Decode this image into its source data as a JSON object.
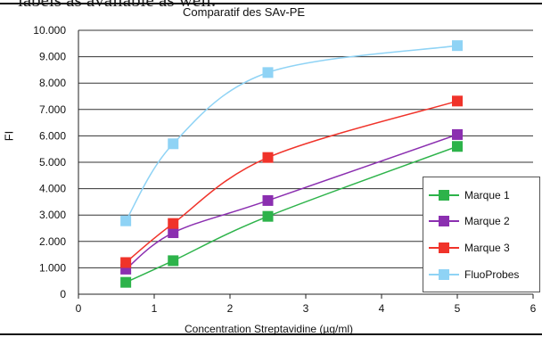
{
  "top_cut_text": "labels as available as well.",
  "chart_data": {
    "type": "line",
    "title": "Comparatif des SAv-PE",
    "xlabel": "Concentration Streptavidine (µg/ml)",
    "ylabel": "FI",
    "xlim": [
      0,
      6
    ],
    "ylim": [
      0,
      10000
    ],
    "x_ticks": [
      0,
      1,
      2,
      3,
      4,
      5,
      6
    ],
    "x_tick_labels": [
      "0",
      "1",
      "2",
      "3",
      "4",
      "5",
      "6"
    ],
    "y_ticks": [
      0,
      1000,
      2000,
      3000,
      4000,
      5000,
      6000,
      7000,
      8000,
      9000,
      10000
    ],
    "y_tick_labels": [
      "0",
      "1.000",
      "2.000",
      "3.000",
      "4.000",
      "5.000",
      "6.000",
      "7.000",
      "8.000",
      "9.000",
      "10.000"
    ],
    "grid": "horizontal",
    "legend_position": "bottom-right",
    "x": [
      0.625,
      1.25,
      2.5,
      5
    ],
    "series": [
      {
        "name": "Marque 1",
        "color": "#2db34a",
        "values": [
          450,
          1270,
          2950,
          5600
        ]
      },
      {
        "name": "Marque 2",
        "color": "#8b2fb0",
        "values": [
          950,
          2330,
          3550,
          6050
        ]
      },
      {
        "name": "Marque 3",
        "color": "#f0332a",
        "values": [
          1200,
          2680,
          5180,
          7320
        ]
      },
      {
        "name": "FluoProbes",
        "color": "#8fd3f5",
        "values": [
          2780,
          5700,
          8400,
          9420
        ]
      }
    ]
  }
}
